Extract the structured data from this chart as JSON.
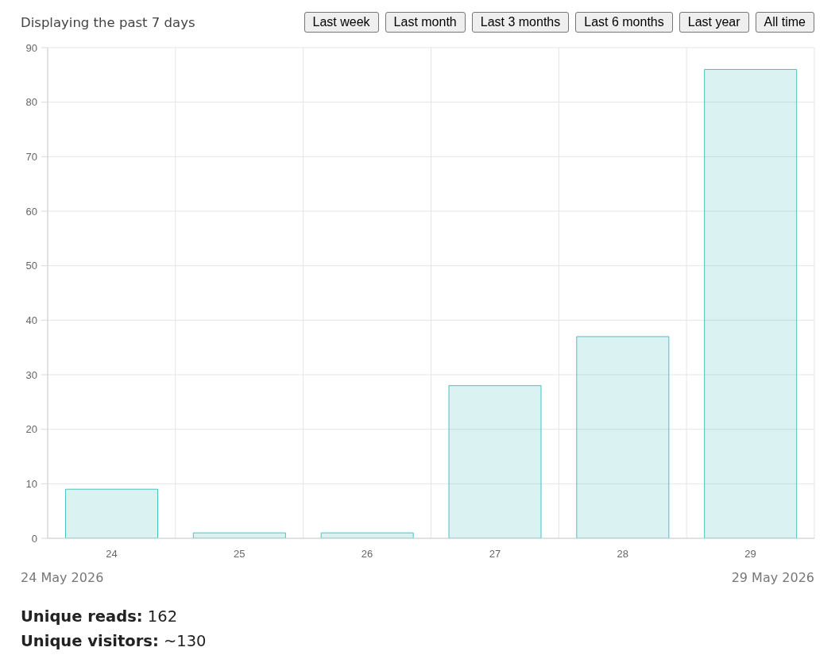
{
  "chart_data": {
    "type": "bar",
    "title": "Displaying the past 7 days",
    "categories": [
      "24",
      "25",
      "26",
      "27",
      "28",
      "29"
    ],
    "values": [
      9,
      1,
      1,
      28,
      37,
      86
    ],
    "color": "#4bc0c0",
    "ylim": [
      0,
      90
    ],
    "yticks": [
      0,
      10,
      20,
      30,
      40,
      50,
      60,
      70,
      80,
      90
    ],
    "grid": true,
    "annotations": [
      "Last week",
      "Last month",
      "Last 3 months",
      "Last 6 months",
      "Last year",
      "All time",
      "24 May 2026",
      "29 May 2026",
      "Unique reads: 162",
      "Unique visitors: ~130"
    ]
  }
}
